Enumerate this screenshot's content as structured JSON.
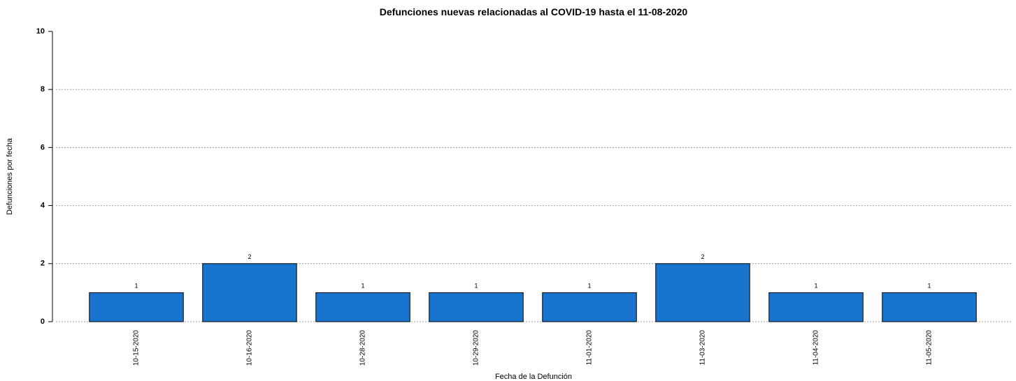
{
  "chart_data": {
    "type": "bar",
    "title": "Defunciones nuevas relacionadas al COVID-19 hasta el 11-08-2020",
    "x_label": "Fecha de la Defunción",
    "y_label": "Defunciones por fecha",
    "categories": [
      "10-15-2020",
      "10-16-2020",
      "10-28-2020",
      "10-29-2020",
      "11-01-2020",
      "11-03-2020",
      "11-04-2020",
      "11-05-2020"
    ],
    "values": [
      1,
      2,
      1,
      1,
      1,
      2,
      1,
      1
    ],
    "color": "#1874cd",
    "ylim": [
      0,
      10
    ],
    "yticks": [
      0,
      2,
      4,
      6,
      8,
      10
    ],
    "grid": true
  }
}
